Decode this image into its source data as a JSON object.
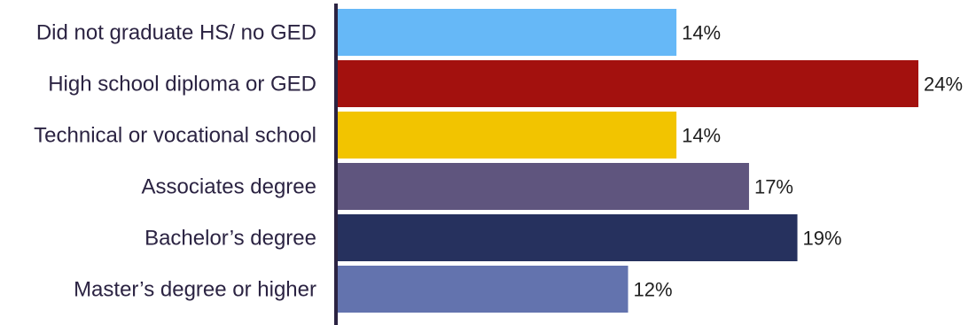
{
  "chart_data": {
    "type": "bar",
    "orientation": "horizontal",
    "categories": [
      "Did not graduate HS/ no GED",
      "High school diploma or GED",
      "Technical or vocational school",
      "Associates degree",
      "Bachelor’s degree",
      "Master’s degree or higher"
    ],
    "values": [
      14,
      24,
      14,
      17,
      19,
      12
    ],
    "value_labels": [
      "14%",
      "24%",
      "14%",
      "17%",
      "19%",
      "12%"
    ],
    "unit": "%",
    "colors": [
      "#66b8f7",
      "#a3110e",
      "#f2c400",
      "#5f557e",
      "#26315e",
      "#6373ae"
    ],
    "axis_color": "#2b2342",
    "xlim": [
      0,
      24
    ],
    "grid": false,
    "legend": "none"
  }
}
